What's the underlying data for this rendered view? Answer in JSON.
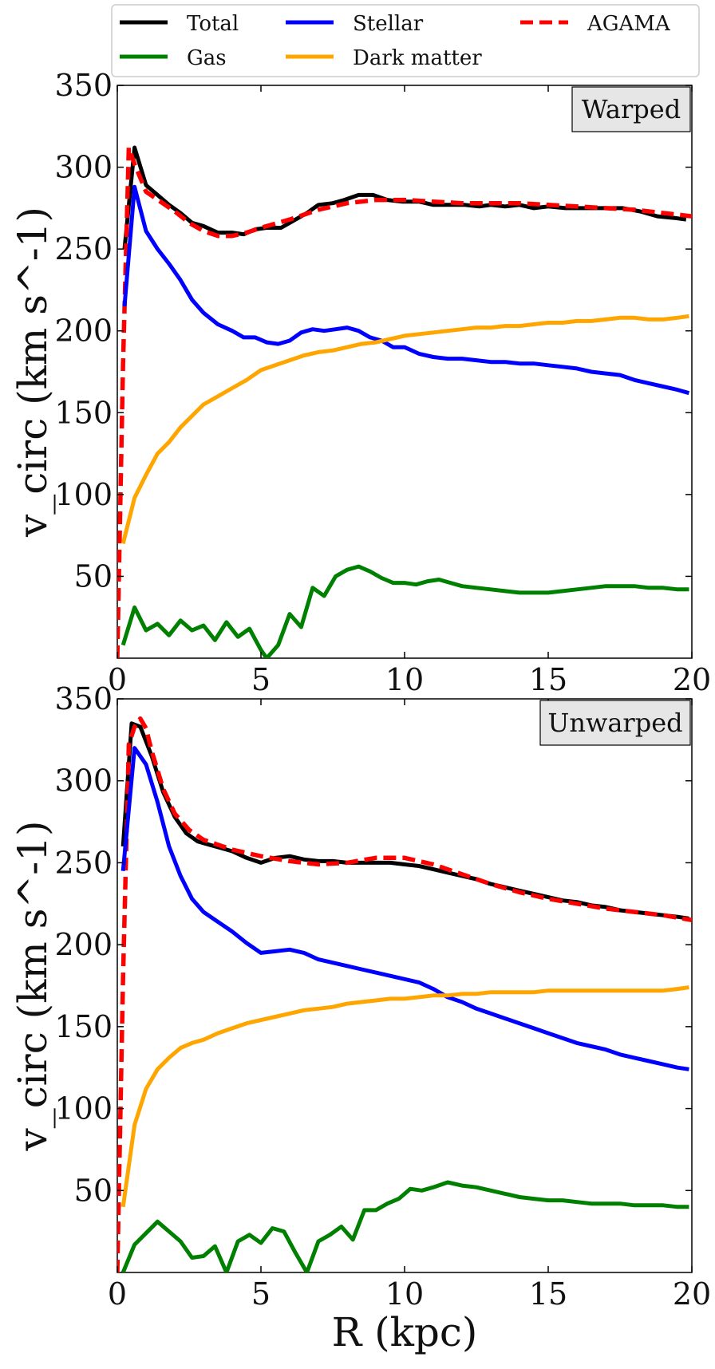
{
  "legend": {
    "entries": [
      {
        "label": "Total",
        "color": "#000000",
        "dash": false
      },
      {
        "label": "Gas",
        "color": "#008000",
        "dash": false
      },
      {
        "label": "Stellar",
        "color": "#0000ff",
        "dash": false
      },
      {
        "label": "Dark matter",
        "color": "#ffa500",
        "dash": false
      },
      {
        "label": "AGAMA",
        "color": "#ff0000",
        "dash": true
      }
    ]
  },
  "chart_data": [
    {
      "type": "line",
      "panel_label": "Warped",
      "ylabel": "v_circ (km s^-1)",
      "xlabel": "",
      "xlim": [
        0,
        20
      ],
      "ylim": [
        0,
        350
      ],
      "xticks": [
        0,
        5,
        10,
        15,
        20
      ],
      "yticks": [
        50,
        100,
        150,
        200,
        250,
        300,
        350
      ],
      "series": [
        {
          "name": "Total",
          "color": "#000000",
          "dashed": false,
          "x": [
            0.25,
            0.6,
            1.0,
            1.4,
            1.8,
            2.2,
            2.6,
            3.0,
            3.5,
            4.0,
            4.4,
            4.8,
            5.2,
            5.7,
            6.1,
            6.6,
            7.0,
            7.5,
            7.9,
            8.4,
            8.9,
            9.4,
            9.9,
            10.5,
            11.0,
            11.6,
            12.1,
            12.6,
            13.0,
            13.5,
            14.0,
            14.5,
            15.0,
            15.6,
            16.1,
            16.6,
            17.2,
            17.6,
            18.2,
            18.8,
            19.4,
            19.8
          ],
          "y": [
            250,
            312,
            289,
            283,
            277,
            272,
            266,
            264,
            260,
            260,
            259,
            262,
            263,
            263,
            267,
            272,
            277,
            278,
            280,
            283,
            283,
            280,
            279,
            279,
            277,
            277,
            277,
            276,
            277,
            276,
            277,
            275,
            276,
            275,
            275,
            275,
            275,
            275,
            273,
            270,
            269,
            268
          ]
        },
        {
          "name": "AGAMA",
          "color": "#ff0000",
          "dashed": true,
          "x": [
            0.0,
            0.2,
            0.4,
            0.6,
            1.0,
            1.5,
            2.0,
            2.5,
            3.0,
            3.5,
            4.0,
            4.5,
            5.0,
            6.0,
            7.0,
            8.0,
            9.0,
            10.0,
            11.0,
            12.0,
            13.0,
            14.0,
            15.0,
            16.0,
            17.0,
            18.0,
            19.0,
            20.0
          ],
          "y": [
            0,
            180,
            312,
            302,
            285,
            279,
            273,
            266,
            261,
            258,
            258,
            260,
            263,
            268,
            274,
            278,
            280,
            280,
            279,
            278,
            278,
            278,
            277,
            276,
            275,
            274,
            272,
            270
          ]
        },
        {
          "name": "Stellar",
          "color": "#0000ff",
          "dashed": false,
          "x": [
            0.25,
            0.6,
            1.0,
            1.4,
            1.8,
            2.2,
            2.6,
            3.0,
            3.5,
            4.0,
            4.4,
            4.8,
            5.2,
            5.6,
            6.0,
            6.4,
            6.8,
            7.2,
            7.6,
            8.0,
            8.4,
            8.8,
            9.2,
            9.6,
            10.0,
            10.5,
            11.0,
            11.5,
            12.0,
            12.5,
            13.0,
            13.5,
            14.0,
            14.5,
            15.0,
            15.5,
            16.0,
            16.5,
            17.0,
            17.5,
            18.0,
            18.5,
            19.0,
            19.5,
            19.9
          ],
          "y": [
            215,
            288,
            261,
            250,
            241,
            231,
            219,
            211,
            204,
            200,
            196,
            196,
            193,
            192,
            194,
            199,
            201,
            200,
            201,
            202,
            200,
            196,
            194,
            190,
            190,
            186,
            184,
            183,
            183,
            182,
            181,
            181,
            180,
            180,
            179,
            178,
            177,
            175,
            174,
            173,
            170,
            168,
            166,
            164,
            162
          ]
        },
        {
          "name": "Dark matter",
          "color": "#ffa500",
          "dashed": false,
          "x": [
            0.2,
            0.6,
            1.0,
            1.4,
            1.8,
            2.2,
            2.6,
            3.0,
            3.5,
            4.0,
            4.5,
            5.0,
            5.5,
            6.0,
            6.5,
            7.0,
            7.5,
            8.0,
            8.5,
            9.0,
            9.5,
            10.0,
            10.5,
            11.0,
            11.5,
            12.0,
            12.5,
            13.0,
            13.5,
            14.0,
            14.5,
            15.0,
            15.5,
            16.0,
            16.5,
            17.0,
            17.5,
            18.0,
            18.5,
            19.0,
            19.5,
            19.9
          ],
          "y": [
            70,
            98,
            112,
            125,
            132,
            141,
            148,
            155,
            160,
            165,
            170,
            176,
            179,
            182,
            185,
            187,
            188,
            190,
            192,
            193,
            195,
            197,
            198,
            199,
            200,
            201,
            202,
            202,
            203,
            203,
            204,
            205,
            205,
            206,
            206,
            207,
            208,
            208,
            207,
            207,
            208,
            209
          ]
        },
        {
          "name": "Gas",
          "color": "#008000",
          "dashed": false,
          "x": [
            0.2,
            0.6,
            1.0,
            1.4,
            1.8,
            2.2,
            2.6,
            3.0,
            3.4,
            3.8,
            4.2,
            4.6,
            5.0,
            5.2,
            5.6,
            6.0,
            6.4,
            6.8,
            7.2,
            7.6,
            8.0,
            8.4,
            8.8,
            9.2,
            9.6,
            10.0,
            10.4,
            10.8,
            11.2,
            11.6,
            12.0,
            12.5,
            13.0,
            13.5,
            14.0,
            14.5,
            15.0,
            15.5,
            16.0,
            16.5,
            17.0,
            17.5,
            18.0,
            18.5,
            19.0,
            19.5,
            19.9
          ],
          "y": [
            8,
            31,
            17,
            21,
            14,
            23,
            17,
            20,
            11,
            22,
            13,
            18,
            5,
            0,
            8,
            27,
            19,
            43,
            38,
            50,
            54,
            56,
            53,
            49,
            46,
            46,
            45,
            47,
            48,
            46,
            44,
            43,
            42,
            41,
            40,
            40,
            40,
            41,
            42,
            43,
            44,
            44,
            44,
            43,
            43,
            42,
            42
          ]
        }
      ]
    },
    {
      "type": "line",
      "panel_label": "Unwarped",
      "ylabel": "v_circ (km s^-1)",
      "xlabel": "R (kpc)",
      "xlim": [
        0,
        20
      ],
      "ylim": [
        0,
        350
      ],
      "xticks": [
        0,
        5,
        10,
        15,
        20
      ],
      "yticks": [
        50,
        100,
        150,
        200,
        250,
        300,
        350
      ],
      "series": [
        {
          "name": "Total",
          "color": "#000000",
          "dashed": false,
          "x": [
            0.2,
            0.5,
            0.8,
            1.2,
            1.6,
            2.0,
            2.4,
            2.8,
            3.2,
            3.6,
            4.0,
            4.5,
            5.0,
            5.5,
            6.0,
            6.5,
            7.0,
            7.5,
            8.0,
            8.5,
            9.0,
            9.5,
            10.0,
            10.5,
            11.0,
            11.5,
            12.0,
            12.5,
            13.0,
            13.5,
            14.0,
            14.5,
            15.0,
            15.5,
            16.0,
            16.5,
            17.0,
            17.5,
            18.0,
            18.5,
            19.0,
            19.5,
            19.9
          ],
          "y": [
            260,
            335,
            333,
            315,
            293,
            278,
            268,
            263,
            261,
            259,
            257,
            253,
            250,
            253,
            254,
            252,
            251,
            251,
            250,
            250,
            250,
            250,
            249,
            248,
            246,
            244,
            242,
            240,
            237,
            235,
            233,
            231,
            229,
            227,
            226,
            224,
            223,
            221,
            220,
            219,
            218,
            217,
            216
          ]
        },
        {
          "name": "AGAMA",
          "color": "#ff0000",
          "dashed": true,
          "x": [
            0.0,
            0.2,
            0.4,
            0.6,
            0.8,
            1.0,
            1.2,
            1.6,
            2.0,
            2.5,
            3.0,
            3.5,
            4.0,
            5.0,
            6.0,
            7.0,
            8.0,
            9.0,
            10.0,
            11.0,
            12.0,
            13.0,
            14.0,
            15.0,
            16.0,
            17.0,
            18.0,
            19.0,
            20.0
          ],
          "y": [
            0,
            180,
            322,
            333,
            338,
            332,
            318,
            295,
            280,
            270,
            264,
            261,
            258,
            254,
            251,
            249,
            250,
            253,
            253,
            249,
            243,
            237,
            232,
            228,
            225,
            222,
            220,
            218,
            215
          ]
        },
        {
          "name": "Stellar",
          "color": "#0000ff",
          "dashed": false,
          "x": [
            0.2,
            0.6,
            1.0,
            1.4,
            1.8,
            2.2,
            2.6,
            3.0,
            3.5,
            4.0,
            4.5,
            5.0,
            5.5,
            6.0,
            6.5,
            7.0,
            7.5,
            8.0,
            8.5,
            9.0,
            9.5,
            10.0,
            10.5,
            11.0,
            11.5,
            12.0,
            12.5,
            13.0,
            13.5,
            14.0,
            14.5,
            15.0,
            15.5,
            16.0,
            16.5,
            17.0,
            17.5,
            18.0,
            18.5,
            19.0,
            19.5,
            19.9
          ],
          "y": [
            245,
            320,
            310,
            287,
            260,
            242,
            228,
            220,
            214,
            208,
            201,
            195,
            196,
            197,
            195,
            191,
            189,
            187,
            185,
            183,
            181,
            179,
            177,
            173,
            168,
            165,
            161,
            158,
            155,
            152,
            149,
            146,
            143,
            140,
            138,
            136,
            133,
            131,
            129,
            127,
            125,
            124
          ]
        },
        {
          "name": "Dark matter",
          "color": "#ffa500",
          "dashed": false,
          "x": [
            0.2,
            0.6,
            1.0,
            1.4,
            1.8,
            2.2,
            2.6,
            3.0,
            3.5,
            4.0,
            4.5,
            5.0,
            5.5,
            6.0,
            6.5,
            7.0,
            7.5,
            8.0,
            8.5,
            9.0,
            9.5,
            10.0,
            10.5,
            11.0,
            11.5,
            12.0,
            12.5,
            13.0,
            13.5,
            14.0,
            14.5,
            15.0,
            15.5,
            16.0,
            16.5,
            17.0,
            17.5,
            18.0,
            18.5,
            19.0,
            19.5,
            19.9
          ],
          "y": [
            40,
            90,
            112,
            124,
            131,
            137,
            140,
            142,
            146,
            149,
            152,
            154,
            156,
            158,
            160,
            161,
            162,
            164,
            165,
            166,
            167,
            167,
            168,
            169,
            169,
            170,
            170,
            171,
            171,
            171,
            171,
            172,
            172,
            172,
            172,
            172,
            172,
            172,
            172,
            172,
            173,
            174
          ]
        },
        {
          "name": "Gas",
          "color": "#008000",
          "dashed": false,
          "x": [
            0.2,
            0.6,
            1.0,
            1.4,
            1.8,
            2.2,
            2.6,
            3.0,
            3.4,
            3.8,
            4.2,
            4.6,
            5.0,
            5.4,
            5.8,
            6.2,
            6.6,
            7.0,
            7.4,
            7.8,
            8.2,
            8.6,
            9.0,
            9.4,
            9.8,
            10.2,
            10.6,
            11.0,
            11.5,
            12.0,
            12.5,
            13.0,
            13.5,
            14.0,
            14.5,
            15.0,
            15.5,
            16.0,
            16.5,
            17.0,
            17.5,
            18.0,
            18.5,
            19.0,
            19.5,
            19.9
          ],
          "y": [
            0,
            17,
            24,
            31,
            25,
            19,
            9,
            10,
            16,
            0,
            19,
            23,
            18,
            27,
            25,
            12,
            0,
            19,
            23,
            28,
            20,
            38,
            38,
            42,
            45,
            51,
            50,
            52,
            55,
            53,
            52,
            50,
            48,
            46,
            45,
            44,
            44,
            43,
            42,
            42,
            42,
            41,
            41,
            41,
            40,
            40
          ]
        }
      ]
    }
  ]
}
